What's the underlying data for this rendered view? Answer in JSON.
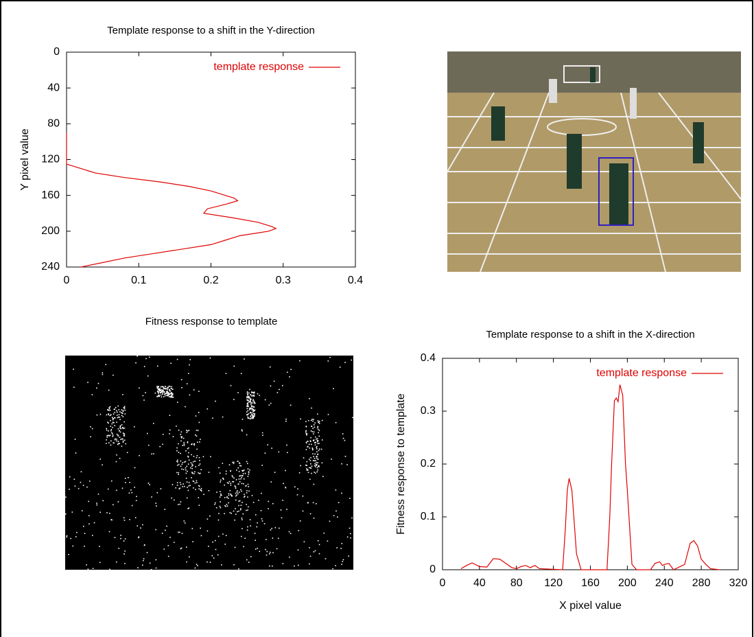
{
  "chart_data": [
    {
      "type": "line",
      "orientation": "horizontal",
      "title": "Template response to a shift in the Y-direction",
      "ylabel": "Y pixel value",
      "y_inverted": true,
      "y": [
        90,
        110,
        125,
        135,
        140,
        145,
        150,
        155,
        160,
        163,
        166,
        170,
        175,
        180,
        185,
        190,
        195,
        197,
        200,
        205,
        210,
        215,
        220,
        225,
        230,
        235,
        240
      ],
      "series": [
        {
          "name": "template response",
          "color": "#e00000",
          "values": [
            0,
            0,
            0,
            0.04,
            0.08,
            0.13,
            0.17,
            0.2,
            0.22,
            0.232,
            0.237,
            0.22,
            0.195,
            0.19,
            0.23,
            0.265,
            0.285,
            0.29,
            0.28,
            0.24,
            0.22,
            0.2,
            0.16,
            0.12,
            0.08,
            0.05,
            0.02
          ]
        }
      ],
      "xlim": [
        0,
        0.4
      ],
      "xticks": [
        0,
        0.1,
        0.2,
        0.3,
        0.4
      ],
      "ylim": [
        0,
        240
      ],
      "yticks": [
        0,
        40,
        80,
        120,
        160,
        200,
        240
      ],
      "legend": "top-right"
    },
    {
      "type": "line",
      "title": "Template response to a shift in the X-direction",
      "xlabel": "X pixel value",
      "ylabel": "Fitness response to template",
      "x": [
        20,
        26,
        32,
        40,
        48,
        55,
        62,
        70,
        75,
        80,
        85,
        90,
        95,
        100,
        105,
        130,
        133,
        135,
        137,
        140,
        145,
        150,
        178,
        181,
        183,
        186,
        188,
        190,
        192,
        195,
        198,
        200,
        205,
        210,
        225,
        230,
        235,
        238,
        240,
        245,
        250,
        262,
        265,
        268,
        272,
        276,
        280,
        285,
        290,
        300
      ],
      "series": [
        {
          "name": "template response",
          "color": "#e00000",
          "values": [
            0.002,
            0.008,
            0.013,
            0.006,
            0.005,
            0.021,
            0.02,
            0.01,
            0.004,
            0.002,
            0.006,
            0.008,
            0.004,
            0.008,
            0.002,
            0,
            0.08,
            0.15,
            0.173,
            0.15,
            0.03,
            0,
            0,
            0.1,
            0.2,
            0.32,
            0.325,
            0.318,
            0.35,
            0.33,
            0.2,
            0.15,
            0.01,
            0,
            0,
            0.012,
            0.015,
            0.008,
            0.01,
            0.012,
            0,
            0.01,
            0.03,
            0.05,
            0.055,
            0.045,
            0.02,
            0.01,
            0.002,
            0
          ]
        }
      ],
      "xlim": [
        0,
        320
      ],
      "xticks": [
        0,
        40,
        80,
        120,
        160,
        200,
        240,
        280,
        320
      ],
      "ylim": [
        0,
        0.4
      ],
      "yticks": [
        0,
        0.1,
        0.2,
        0.3,
        0.4
      ],
      "legend": "top-right"
    }
  ],
  "image_caption": "Fitness response to template"
}
